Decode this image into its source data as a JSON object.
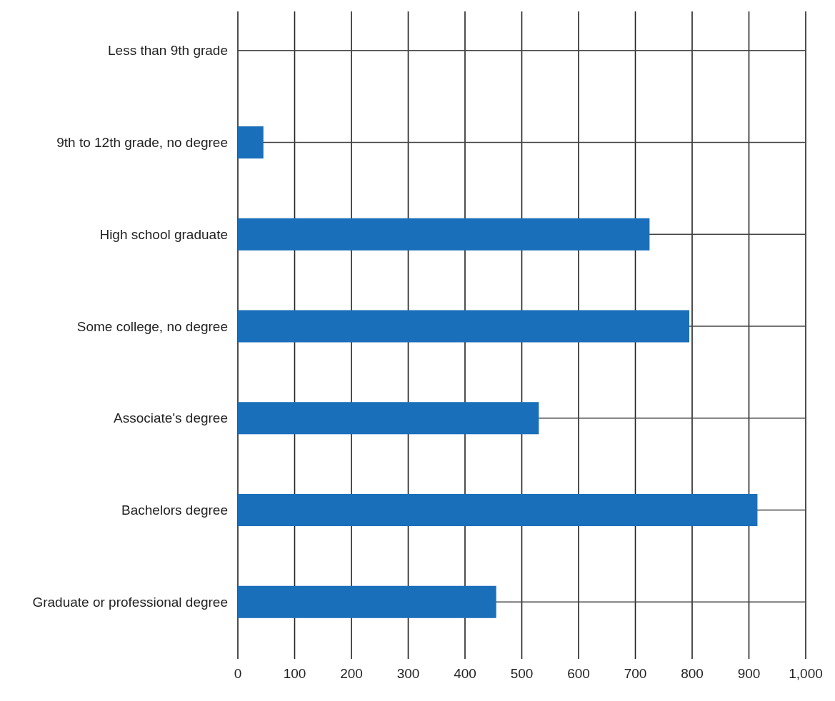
{
  "chart_data": {
    "type": "bar",
    "orientation": "horizontal",
    "categories": [
      "Less than 9th grade",
      "9th to 12th grade, no degree",
      "High school graduate",
      "Some college, no degree",
      "Associate's degree",
      "Bachelors degree",
      "Graduate or professional degree"
    ],
    "values": [
      0,
      45,
      725,
      795,
      530,
      915,
      455
    ],
    "color": "#1a6fba",
    "xlim": [
      0,
      1000
    ],
    "xticks": [
      0,
      100,
      200,
      300,
      400,
      500,
      600,
      700,
      800,
      900,
      {
        "value": 1000,
        "label": "1,000"
      }
    ],
    "grid": true
  }
}
